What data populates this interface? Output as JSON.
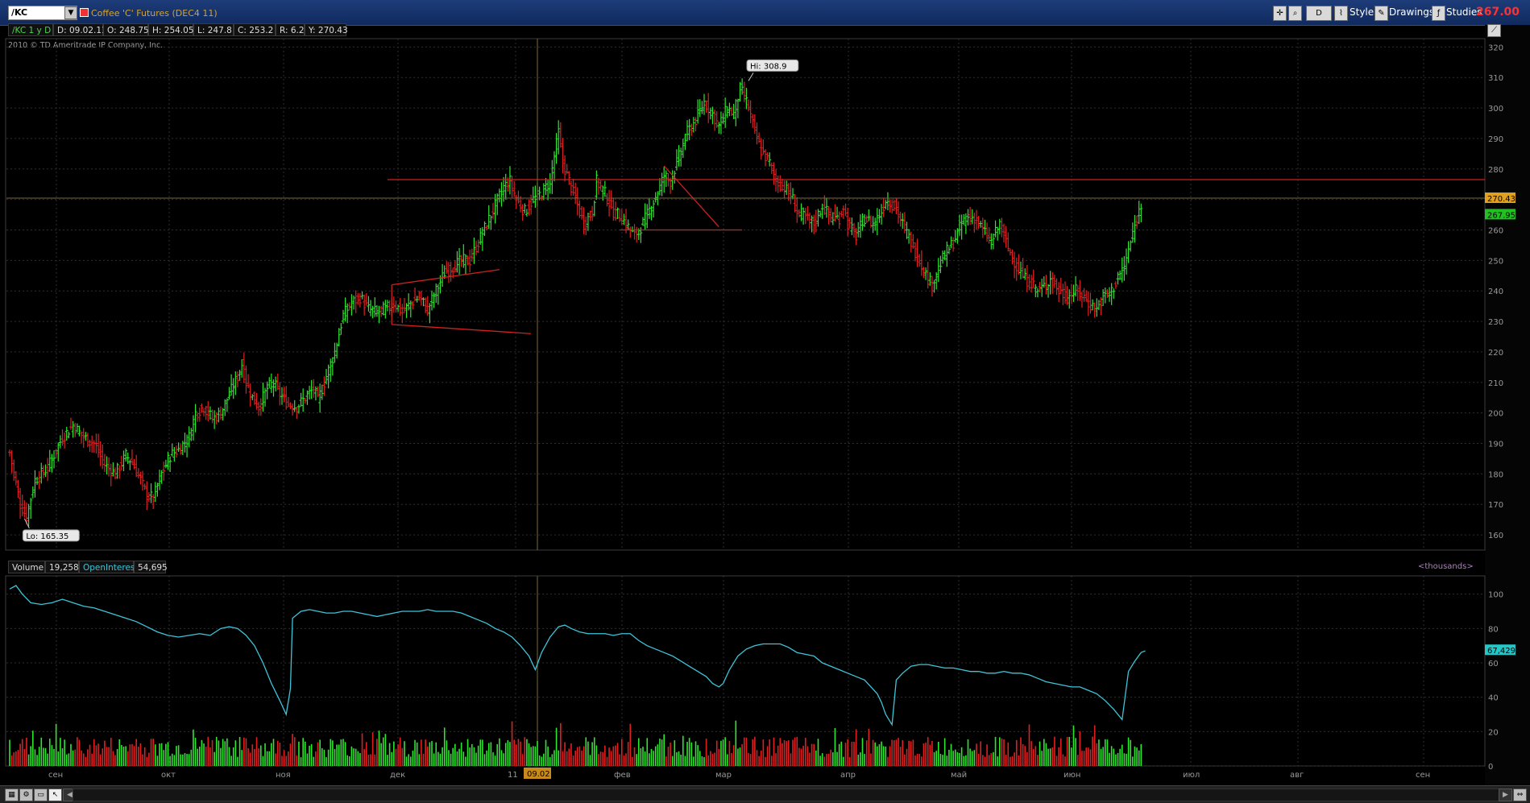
{
  "window": {
    "symbol": "/KC",
    "title": "Coffee 'C' Futures (DEC4 11)",
    "last_price": "267.00",
    "toolbar": {
      "d_label": "D",
      "style_label": "Style",
      "drawings_label": "Drawings",
      "studies_label": "Studies"
    }
  },
  "infobar": {
    "period": "/KC 1 y D",
    "date": "D: 09.02.11",
    "open": "O: 248.75",
    "high": "H: 254.05",
    "low": "L: 247.8",
    "close": "C: 253.2",
    "range": "R: 6.25",
    "y": "Y: 270.43"
  },
  "copyright": "2010 © TD Ameritrade IP Company, Inc.",
  "volume_panel": {
    "volume_label": "Volume",
    "volume_value": "19,258",
    "oi_label": "OpenInterest",
    "oi_value": "54,695",
    "units": "<thousands>",
    "oi_last_label": "67,429"
  },
  "colors": {
    "up": "#2ee62e",
    "down": "#e02020",
    "oi_line": "#3fc4d8",
    "drawing": "#d02020",
    "grid": "#2e2e2e",
    "crosshair": "#7a6a40"
  },
  "chart_data": [
    {
      "type": "ohlc",
      "ylim": [
        155,
        323
      ],
      "y_ticks": [
        160,
        170,
        180,
        190,
        200,
        210,
        220,
        230,
        240,
        250,
        260,
        270,
        280,
        290,
        300,
        310,
        320
      ],
      "x_labels": [
        "сен",
        "окт",
        "ноя",
        "дек",
        "11",
        "фев",
        "мар",
        "апр",
        "май",
        "июн",
        "июл",
        "авг",
        "сен"
      ],
      "crosshair_date_label": "09.02",
      "hi_label": "Hi: 308.9",
      "lo_label": "Lo: 165.35",
      "price_tags": [
        {
          "value": 270.43,
          "label": "270.43",
          "color": "#e0a020"
        },
        {
          "value": 267.95,
          "label": "267.95",
          "color": "#22c022"
        }
      ],
      "key_points": [
        [
          0,
          187
        ],
        [
          5,
          170
        ],
        [
          8,
          166
        ],
        [
          12,
          178
        ],
        [
          18,
          182
        ],
        [
          25,
          192
        ],
        [
          30,
          196
        ],
        [
          35,
          192
        ],
        [
          40,
          190
        ],
        [
          45,
          183
        ],
        [
          50,
          180
        ],
        [
          55,
          186
        ],
        [
          58,
          184
        ],
        [
          62,
          178
        ],
        [
          65,
          173
        ],
        [
          68,
          172
        ],
        [
          72,
          180
        ],
        [
          76,
          186
        ],
        [
          80,
          188
        ],
        [
          85,
          192
        ],
        [
          88,
          200
        ],
        [
          92,
          202
        ],
        [
          96,
          198
        ],
        [
          100,
          200
        ],
        [
          104,
          206
        ],
        [
          108,
          212
        ],
        [
          110,
          216
        ],
        [
          112,
          210
        ],
        [
          115,
          205
        ],
        [
          118,
          202
        ],
        [
          122,
          208
        ],
        [
          125,
          210
        ],
        [
          128,
          206
        ],
        [
          132,
          203
        ],
        [
          136,
          202
        ],
        [
          140,
          205
        ],
        [
          144,
          208
        ],
        [
          146,
          204
        ],
        [
          150,
          212
        ],
        [
          154,
          220
        ],
        [
          156,
          226
        ],
        [
          158,
          232
        ],
        [
          162,
          236
        ],
        [
          166,
          238
        ],
        [
          170,
          234
        ],
        [
          174,
          233
        ],
        [
          178,
          234
        ],
        [
          182,
          236
        ],
        [
          186,
          233
        ],
        [
          190,
          236
        ],
        [
          194,
          238
        ],
        [
          198,
          234
        ],
        [
          202,
          240
        ],
        [
          206,
          246
        ],
        [
          210,
          248
        ],
        [
          214,
          250
        ],
        [
          218,
          250
        ],
        [
          222,
          256
        ],
        [
          226,
          262
        ],
        [
          230,
          268
        ],
        [
          234,
          274
        ],
        [
          237,
          276
        ],
        [
          240,
          270
        ],
        [
          244,
          266
        ],
        [
          248,
          270
        ],
        [
          252,
          272
        ],
        [
          256,
          276
        ],
        [
          258,
          284
        ],
        [
          260,
          292
        ],
        [
          262,
          282
        ],
        [
          266,
          274
        ],
        [
          270,
          266
        ],
        [
          272,
          262
        ],
        [
          276,
          266
        ],
        [
          278,
          276
        ],
        [
          282,
          272
        ],
        [
          286,
          266
        ],
        [
          290,
          264
        ],
        [
          294,
          260
        ],
        [
          296,
          258
        ],
        [
          300,
          262
        ],
        [
          304,
          268
        ],
        [
          308,
          274
        ],
        [
          310,
          278
        ],
        [
          313,
          276
        ],
        [
          317,
          284
        ],
        [
          321,
          292
        ],
        [
          325,
          296
        ],
        [
          329,
          302
        ],
        [
          333,
          298
        ],
        [
          336,
          294
        ],
        [
          340,
          300
        ],
        [
          343,
          298
        ],
        [
          346,
          306
        ],
        [
          348,
          304
        ],
        [
          350,
          300
        ],
        [
          353,
          292
        ],
        [
          356,
          286
        ],
        [
          360,
          282
        ],
        [
          363,
          276
        ],
        [
          367,
          274
        ],
        [
          371,
          270
        ],
        [
          373,
          266
        ],
        [
          377,
          264
        ],
        [
          381,
          262
        ],
        [
          385,
          268
        ],
        [
          389,
          264
        ],
        [
          393,
          264
        ],
        [
          395,
          268
        ],
        [
          397,
          262
        ],
        [
          401,
          258
        ],
        [
          405,
          264
        ],
        [
          409,
          262
        ],
        [
          413,
          266
        ],
        [
          415,
          270
        ],
        [
          419,
          268
        ],
        [
          423,
          262
        ],
        [
          427,
          256
        ],
        [
          431,
          250
        ],
        [
          435,
          244
        ],
        [
          437,
          242
        ],
        [
          439,
          246
        ],
        [
          443,
          252
        ],
        [
          447,
          256
        ],
        [
          451,
          262
        ],
        [
          453,
          264
        ],
        [
          457,
          264
        ],
        [
          461,
          260
        ],
        [
          465,
          256
        ],
        [
          469,
          262
        ],
        [
          473,
          254
        ],
        [
          477,
          248
        ],
        [
          481,
          244
        ],
        [
          485,
          242
        ],
        [
          487,
          240
        ],
        [
          491,
          242
        ],
        [
          493,
          244
        ],
        [
          497,
          240
        ],
        [
          501,
          238
        ],
        [
          505,
          240
        ],
        [
          509,
          238
        ],
        [
          511,
          236
        ],
        [
          515,
          234
        ],
        [
          518,
          238
        ],
        [
          522,
          240
        ],
        [
          525,
          244
        ],
        [
          528,
          248
        ],
        [
          531,
          256
        ],
        [
          534,
          264
        ],
        [
          536,
          268
        ]
      ]
    },
    {
      "type": "bar+line",
      "ylim": [
        0,
        105
      ],
      "y_ticks": [
        0,
        20,
        40,
        60,
        80,
        100
      ],
      "oi_last": 67.4,
      "oi_points": [
        [
          0,
          103
        ],
        [
          3,
          105
        ],
        [
          6,
          100
        ],
        [
          10,
          95
        ],
        [
          15,
          94
        ],
        [
          20,
          95
        ],
        [
          25,
          97
        ],
        [
          30,
          95
        ],
        [
          35,
          93
        ],
        [
          40,
          92
        ],
        [
          45,
          90
        ],
        [
          50,
          88
        ],
        [
          55,
          86
        ],
        [
          60,
          84
        ],
        [
          65,
          81
        ],
        [
          70,
          78
        ],
        [
          75,
          76
        ],
        [
          80,
          75
        ],
        [
          85,
          76
        ],
        [
          90,
          77
        ],
        [
          95,
          76
        ],
        [
          100,
          80
        ],
        [
          104,
          81
        ],
        [
          108,
          80
        ],
        [
          112,
          76
        ],
        [
          116,
          70
        ],
        [
          120,
          60
        ],
        [
          124,
          48
        ],
        [
          128,
          38
        ],
        [
          131,
          30
        ],
        [
          133,
          45
        ],
        [
          134,
          86
        ],
        [
          138,
          90
        ],
        [
          142,
          91
        ],
        [
          146,
          90
        ],
        [
          150,
          89
        ],
        [
          154,
          89
        ],
        [
          158,
          90
        ],
        [
          162,
          90
        ],
        [
          166,
          89
        ],
        [
          170,
          88
        ],
        [
          174,
          87
        ],
        [
          178,
          88
        ],
        [
          182,
          89
        ],
        [
          186,
          90
        ],
        [
          190,
          90
        ],
        [
          194,
          90
        ],
        [
          198,
          91
        ],
        [
          202,
          90
        ],
        [
          206,
          90
        ],
        [
          210,
          90
        ],
        [
          214,
          89
        ],
        [
          218,
          87
        ],
        [
          222,
          85
        ],
        [
          226,
          83
        ],
        [
          230,
          80
        ],
        [
          234,
          78
        ],
        [
          238,
          75
        ],
        [
          242,
          70
        ],
        [
          246,
          64
        ],
        [
          249,
          56
        ],
        [
          252,
          66
        ],
        [
          256,
          75
        ],
        [
          260,
          81
        ],
        [
          263,
          82
        ],
        [
          266,
          80
        ],
        [
          270,
          78
        ],
        [
          274,
          77
        ],
        [
          278,
          77
        ],
        [
          282,
          77
        ],
        [
          286,
          76
        ],
        [
          290,
          77
        ],
        [
          294,
          77
        ],
        [
          298,
          73
        ],
        [
          302,
          70
        ],
        [
          306,
          68
        ],
        [
          310,
          66
        ],
        [
          314,
          64
        ],
        [
          318,
          61
        ],
        [
          322,
          58
        ],
        [
          326,
          55
        ],
        [
          330,
          52
        ],
        [
          333,
          48
        ],
        [
          336,
          46
        ],
        [
          338,
          48
        ],
        [
          341,
          56
        ],
        [
          345,
          64
        ],
        [
          349,
          68
        ],
        [
          353,
          70
        ],
        [
          357,
          71
        ],
        [
          361,
          71
        ],
        [
          365,
          71
        ],
        [
          369,
          69
        ],
        [
          373,
          66
        ],
        [
          377,
          65
        ],
        [
          381,
          64
        ],
        [
          385,
          60
        ],
        [
          389,
          58
        ],
        [
          393,
          56
        ],
        [
          397,
          54
        ],
        [
          401,
          52
        ],
        [
          405,
          50
        ],
        [
          408,
          46
        ],
        [
          411,
          42
        ],
        [
          413,
          37
        ],
        [
          415,
          30
        ],
        [
          418,
          24
        ],
        [
          420,
          50
        ],
        [
          423,
          54
        ],
        [
          427,
          58
        ],
        [
          431,
          59
        ],
        [
          435,
          59
        ],
        [
          439,
          58
        ],
        [
          443,
          57
        ],
        [
          447,
          57
        ],
        [
          451,
          56
        ],
        [
          455,
          55
        ],
        [
          459,
          55
        ],
        [
          463,
          54
        ],
        [
          467,
          54
        ],
        [
          471,
          55
        ],
        [
          475,
          54
        ],
        [
          479,
          54
        ],
        [
          483,
          53
        ],
        [
          487,
          51
        ],
        [
          491,
          49
        ],
        [
          495,
          48
        ],
        [
          499,
          47
        ],
        [
          503,
          46
        ],
        [
          507,
          46
        ],
        [
          511,
          44
        ],
        [
          515,
          42
        ],
        [
          519,
          38
        ],
        [
          523,
          33
        ],
        [
          527,
          27
        ],
        [
          530,
          55
        ],
        [
          533,
          61
        ],
        [
          536,
          66
        ],
        [
          538,
          67
        ]
      ]
    }
  ]
}
